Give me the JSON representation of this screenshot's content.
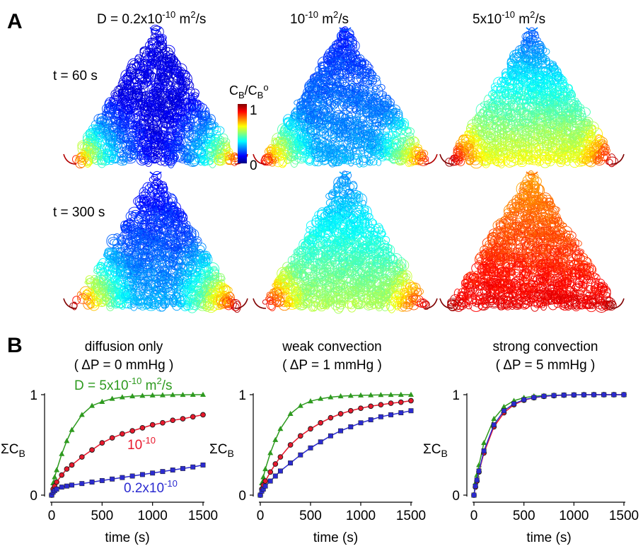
{
  "panel_a": {
    "letter": "A",
    "columns": [
      {
        "label_base": "D = 0.2x10",
        "label_sup": "-10",
        "label_mid": " m",
        "label_sup2": "2",
        "label_end": "/s"
      },
      {
        "label_base": "10",
        "label_sup": "-10",
        "label_mid": " m",
        "label_sup2": "2",
        "label_end": "/s"
      },
      {
        "label_base": "5x10",
        "label_sup": "-10",
        "label_mid": " m",
        "label_sup2": "2",
        "label_end": "/s"
      }
    ],
    "rows": [
      {
        "label": "t = 60 s"
      },
      {
        "label": "t = 300 s"
      }
    ],
    "colorbar": {
      "title_c1": "C",
      "title_sub1": "B",
      "title_slash": "/C",
      "title_sub2": "B",
      "title_sup": "o",
      "max_label": "1",
      "min_label": "0",
      "colors": [
        "#00007f",
        "#0000ff",
        "#0080ff",
        "#00ffff",
        "#80ff80",
        "#ffff00",
        "#ff8000",
        "#ff0000",
        "#7f0000"
      ]
    },
    "maps": [
      [
        {
          "source_corner": 0.95,
          "apex": 0.1,
          "base_mid": 0.1,
          "mean": 0.1
        },
        {
          "source_corner": 0.95,
          "apex": 0.15,
          "base_mid": 0.3,
          "mean": 0.2
        },
        {
          "source_corner": 1.0,
          "apex": 0.2,
          "base_mid": 0.62,
          "mean": 0.45
        }
      ],
      [
        {
          "source_corner": 1.0,
          "apex": 0.1,
          "base_mid": 0.3,
          "mean": 0.25
        },
        {
          "source_corner": 1.0,
          "apex": 0.25,
          "base_mid": 0.55,
          "mean": 0.4
        },
        {
          "source_corner": 1.0,
          "apex": 0.72,
          "base_mid": 0.9,
          "mean": 0.85
        }
      ]
    ]
  },
  "panel_b": {
    "letter": "B",
    "xlabel": "time (s)",
    "ylabel_main": "ΣC",
    "ylabel_sub": "B",
    "colors": {
      "green": "#2e9a1f",
      "red": "#e8182c",
      "blue": "#2b2bd0",
      "marker_dark": "#1a1a1a"
    }
  },
  "chart_data": [
    {
      "type": "line",
      "title": "diffusion only",
      "subtitle": "( ΔP = 0 mmHg )",
      "x_ticks": [
        "0",
        "500",
        "1000",
        "1500"
      ],
      "y_ticks": [
        "0",
        "1"
      ],
      "xlim": [
        0,
        1500
      ],
      "ylim": [
        0,
        1
      ],
      "series": [
        {
          "name": "D = 5x10-10 m2/s",
          "label_base": "D = 5x10",
          "label_sup": "-10",
          "label_mid": " m",
          "label_sup2": "2",
          "label_end": "/s",
          "color": "#2e9a1f",
          "marker": "triangle",
          "x": [
            0,
            15,
            30,
            50,
            100,
            150,
            200,
            300,
            400,
            500,
            600,
            700,
            800,
            900,
            1000,
            1100,
            1200,
            1300,
            1400,
            1500
          ],
          "y": [
            0,
            0.12,
            0.18,
            0.25,
            0.41,
            0.54,
            0.65,
            0.8,
            0.89,
            0.93,
            0.96,
            0.975,
            0.985,
            0.99,
            0.994,
            0.996,
            0.998,
            0.999,
            1.0,
            1.0
          ]
        },
        {
          "name": "10-10",
          "label_base": "10",
          "label_sup": "-10",
          "color": "#e8182c",
          "marker": "circle",
          "x": [
            0,
            15,
            30,
            50,
            100,
            150,
            200,
            300,
            400,
            500,
            600,
            700,
            800,
            900,
            1000,
            1100,
            1200,
            1300,
            1400,
            1500
          ],
          "y": [
            0,
            0.06,
            0.09,
            0.13,
            0.2,
            0.26,
            0.3,
            0.38,
            0.45,
            0.52,
            0.57,
            0.61,
            0.64,
            0.67,
            0.7,
            0.72,
            0.745,
            0.76,
            0.78,
            0.8
          ]
        },
        {
          "name": "0.2x10-10",
          "label_base": "0.2x10",
          "label_sup": "-10",
          "color": "#2b2bd0",
          "marker": "square",
          "x": [
            0,
            15,
            30,
            50,
            100,
            150,
            200,
            300,
            400,
            500,
            600,
            700,
            800,
            900,
            1000,
            1100,
            1200,
            1300,
            1400,
            1500
          ],
          "y": [
            0,
            0.03,
            0.045,
            0.06,
            0.08,
            0.09,
            0.1,
            0.115,
            0.13,
            0.145,
            0.16,
            0.175,
            0.19,
            0.205,
            0.22,
            0.235,
            0.25,
            0.265,
            0.28,
            0.3
          ]
        }
      ]
    },
    {
      "type": "line",
      "title": "weak convection",
      "subtitle": "( ΔP = 1 mmHg )",
      "x_ticks": [
        "0",
        "500",
        "1000",
        "1500"
      ],
      "y_ticks": [
        "0",
        "1"
      ],
      "xlim": [
        0,
        1500
      ],
      "ylim": [
        0,
        1
      ],
      "series": [
        {
          "color": "#2e9a1f",
          "marker": "triangle",
          "x": [
            0,
            15,
            30,
            50,
            100,
            150,
            200,
            300,
            400,
            500,
            600,
            700,
            800,
            900,
            1000,
            1100,
            1200,
            1300,
            1400,
            1500
          ],
          "y": [
            0,
            0.12,
            0.18,
            0.26,
            0.42,
            0.55,
            0.66,
            0.81,
            0.89,
            0.935,
            0.96,
            0.975,
            0.985,
            0.99,
            0.994,
            0.996,
            0.998,
            0.999,
            1.0,
            1.0
          ]
        },
        {
          "color": "#e8182c",
          "marker": "circle",
          "x": [
            0,
            15,
            30,
            50,
            100,
            150,
            200,
            300,
            400,
            500,
            600,
            700,
            800,
            900,
            1000,
            1100,
            1200,
            1300,
            1400,
            1500
          ],
          "y": [
            0,
            0.06,
            0.1,
            0.14,
            0.23,
            0.31,
            0.38,
            0.5,
            0.59,
            0.66,
            0.72,
            0.77,
            0.81,
            0.84,
            0.865,
            0.885,
            0.9,
            0.915,
            0.925,
            0.94
          ]
        },
        {
          "color": "#2b2bd0",
          "marker": "square",
          "x": [
            0,
            15,
            30,
            50,
            100,
            150,
            200,
            300,
            400,
            500,
            600,
            700,
            800,
            900,
            1000,
            1100,
            1200,
            1300,
            1400,
            1500
          ],
          "y": [
            0,
            0.04,
            0.06,
            0.09,
            0.14,
            0.19,
            0.24,
            0.32,
            0.4,
            0.47,
            0.53,
            0.59,
            0.64,
            0.68,
            0.72,
            0.75,
            0.78,
            0.8,
            0.82,
            0.84
          ]
        }
      ]
    },
    {
      "type": "line",
      "title": "strong convection",
      "subtitle": "( ΔP = 5 mmHg )",
      "x_ticks": [
        "0",
        "500",
        "1000",
        "1500"
      ],
      "y_ticks": [
        "0",
        "1"
      ],
      "xlim": [
        0,
        1500
      ],
      "ylim": [
        0,
        1
      ],
      "series": [
        {
          "color": "#2e9a1f",
          "marker": "triangle",
          "x": [
            0,
            15,
            30,
            50,
            100,
            200,
            300,
            400,
            500,
            600,
            700,
            800,
            900,
            1000,
            1100,
            1200,
            1300,
            1400,
            1500
          ],
          "y": [
            0,
            0.12,
            0.2,
            0.3,
            0.52,
            0.76,
            0.88,
            0.94,
            0.97,
            0.985,
            0.99,
            0.995,
            0.997,
            0.999,
            1.0,
            1.0,
            1.0,
            1.0,
            1.0
          ]
        },
        {
          "color": "#e8182c",
          "marker": "circle",
          "x": [
            0,
            15,
            30,
            50,
            100,
            200,
            300,
            400,
            500,
            600,
            700,
            800,
            900,
            1000,
            1100,
            1200,
            1300,
            1400,
            1500
          ],
          "y": [
            0,
            0.08,
            0.14,
            0.23,
            0.42,
            0.68,
            0.82,
            0.9,
            0.945,
            0.97,
            0.983,
            0.99,
            0.995,
            0.997,
            0.999,
            1.0,
            1.0,
            1.0,
            1.0
          ]
        },
        {
          "color": "#2b2bd0",
          "marker": "square",
          "x": [
            0,
            15,
            30,
            50,
            100,
            200,
            300,
            400,
            500,
            600,
            700,
            800,
            900,
            1000,
            1100,
            1200,
            1300,
            1400,
            1500
          ],
          "y": [
            0,
            0.09,
            0.15,
            0.24,
            0.44,
            0.7,
            0.84,
            0.91,
            0.95,
            0.972,
            0.985,
            0.992,
            0.996,
            0.998,
            0.999,
            1.0,
            1.0,
            1.0,
            1.0
          ]
        }
      ]
    }
  ]
}
